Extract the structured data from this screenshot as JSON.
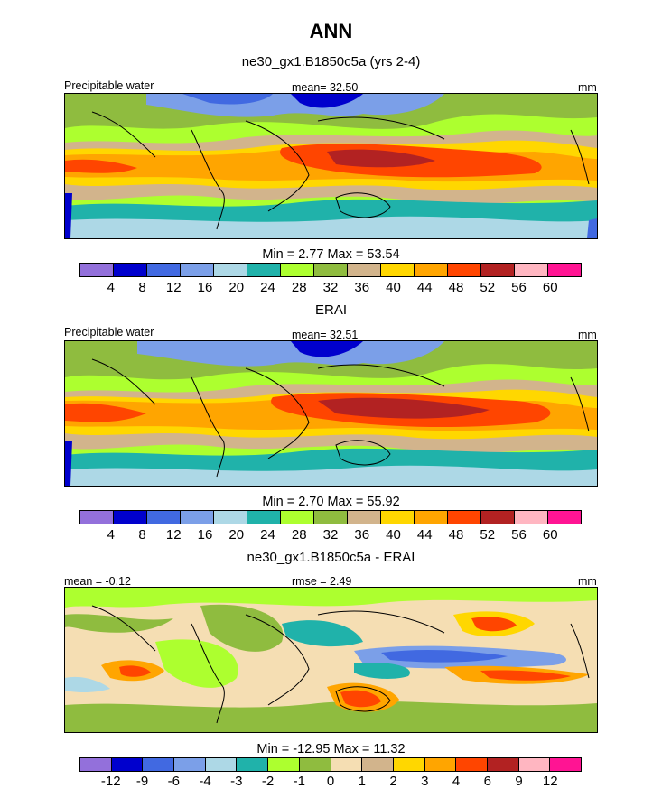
{
  "figure": {
    "title": "ANN"
  },
  "colors": {
    "abs": [
      "#9370db",
      "#0000cd",
      "#4169e1",
      "#7b9fe8",
      "#add8e6",
      "#20b2aa",
      "#adff2f",
      "#8fbc3f",
      "#d2b48c",
      "#ffd700",
      "#ffa500",
      "#ff4500",
      "#b22222",
      "#ffb6c1",
      "#ff1493"
    ],
    "diff": [
      "#9370db",
      "#0000cd",
      "#4169e1",
      "#7b9fe8",
      "#add8e6",
      "#20b2aa",
      "#adff2f",
      "#8fbc3f",
      "#f5deb3",
      "#d2b48c",
      "#ffd700",
      "#ffa500",
      "#ff4500",
      "#b22222",
      "#ffb6c1",
      "#ff1493"
    ]
  },
  "chart_data": [
    {
      "type": "heatmap",
      "title": "ne30_gx1.B1850c5a (yrs 2-4)",
      "left_label": "Precipitable water",
      "center_label": "mean=  32.50",
      "units": "mm",
      "minmax": "Min =   2.77 Max =  53.54",
      "min": 2.77,
      "max": 53.54,
      "mean": 32.5,
      "levels": [
        "4",
        "8",
        "12",
        "16",
        "20",
        "24",
        "28",
        "32",
        "36",
        "40",
        "44",
        "48",
        "52",
        "56",
        "60"
      ]
    },
    {
      "type": "heatmap",
      "title": "ERAI",
      "left_label": "Precipitable water",
      "center_label": "mean=  32.51",
      "units": "mm",
      "minmax": "Min =   2.70 Max =  55.92",
      "min": 2.7,
      "max": 55.92,
      "mean": 32.51,
      "levels": [
        "4",
        "8",
        "12",
        "16",
        "20",
        "24",
        "28",
        "32",
        "36",
        "40",
        "44",
        "48",
        "52",
        "56",
        "60"
      ]
    },
    {
      "type": "heatmap",
      "title": "ne30_gx1.B1850c5a - ERAI",
      "left_label": "mean =  -0.12",
      "center_label": "rmse =   2.49",
      "units": "mm",
      "minmax": "Min = -12.95 Max =  11.32",
      "min": -12.95,
      "max": 11.32,
      "mean": -0.12,
      "rmse": 2.49,
      "levels": [
        "-12",
        "-9",
        "-6",
        "-4",
        "-3",
        "-2",
        "-1",
        "0",
        "1",
        "2",
        "3",
        "4",
        "6",
        "9",
        "12"
      ]
    }
  ]
}
